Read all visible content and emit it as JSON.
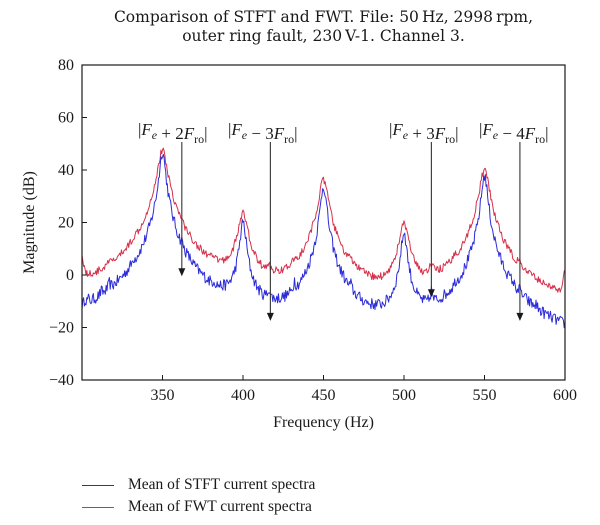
{
  "chart_data": {
    "type": "line",
    "title": "Comparison of STFT and FWT. File: 50 Hz, 2998 rpm, outer ring fault, 230 V-1. Channel 3.",
    "title_lines": [
      "Comparison of STFT and FWT. File: 50 Hz, 2998 rpm,",
      "outer ring fault, 230 V-1. Channel 3."
    ],
    "xlabel": "Frequency (Hz)",
    "ylabel": "Magnitude (dB)",
    "xlim": [
      300,
      600
    ],
    "ylim": [
      -40,
      80
    ],
    "xticks": [
      350,
      400,
      450,
      500,
      550,
      600
    ],
    "yticks": [
      -40,
      -20,
      0,
      20,
      40,
      60,
      80
    ],
    "grid": false,
    "legend_position": "bottom-left-below-axes",
    "series": [
      {
        "name": "Mean of STFT current spectra",
        "color": "#2b2bd9",
        "baseline_db": -34,
        "noise_db": 2.2,
        "peaks": [
          {
            "freq": 302,
            "db": -22
          },
          {
            "freq": 304,
            "db": -28
          },
          {
            "freq": 312,
            "db": -24
          },
          {
            "freq": 317,
            "db": -16
          },
          {
            "freq": 332,
            "db": -10
          },
          {
            "freq": 350,
            "db": 47
          },
          {
            "freq": 362,
            "db": -5
          },
          {
            "freq": 367,
            "db": -26
          },
          {
            "freq": 382,
            "db": -19
          },
          {
            "freq": 400,
            "db": 20
          },
          {
            "freq": 416,
            "db": -14
          },
          {
            "freq": 432,
            "db": -11
          },
          {
            "freq": 450,
            "db": 34
          },
          {
            "freq": 462,
            "db": -22
          },
          {
            "freq": 467,
            "db": -18
          },
          {
            "freq": 500,
            "db": 16
          },
          {
            "freq": 517,
            "db": -14
          },
          {
            "freq": 532,
            "db": -21
          },
          {
            "freq": 550,
            "db": 38
          },
          {
            "freq": 563,
            "db": -24
          },
          {
            "freq": 567,
            "db": -20
          },
          {
            "freq": 572,
            "db": -22
          },
          {
            "freq": 582,
            "db": -28
          }
        ]
      },
      {
        "name": "Mean of FWT current spectra",
        "color": "#d6304a",
        "baseline_db": -20,
        "noise_db": 1.4,
        "peaks": [
          {
            "freq": 300,
            "db": 4
          },
          {
            "freq": 317,
            "db": -12
          },
          {
            "freq": 332,
            "db": -9
          },
          {
            "freq": 350,
            "db": 47.5
          },
          {
            "freq": 362,
            "db": -2
          },
          {
            "freq": 382,
            "db": -16
          },
          {
            "freq": 400,
            "db": 23
          },
          {
            "freq": 416,
            "db": -10
          },
          {
            "freq": 432,
            "db": -8
          },
          {
            "freq": 450,
            "db": 36
          },
          {
            "freq": 467,
            "db": -15
          },
          {
            "freq": 500,
            "db": 19
          },
          {
            "freq": 517,
            "db": -6
          },
          {
            "freq": 532,
            "db": -11
          },
          {
            "freq": 550,
            "db": 40
          },
          {
            "freq": 572,
            "db": -14
          },
          {
            "freq": 600,
            "db": 0
          }
        ]
      }
    ],
    "annotations": [
      {
        "label_main": "|F",
        "sub1": "e",
        "mid": " + 2F",
        "sub2": "ro",
        "end": "|",
        "arrow_freq": 362,
        "arrow_tip_db": -2
      },
      {
        "label_main": "|F",
        "sub1": "e",
        "mid": " − 3F",
        "sub2": "ro",
        "end": "|",
        "arrow_freq": 417,
        "arrow_tip_db": -19
      },
      {
        "label_main": "|F",
        "sub1": "e",
        "mid": " + 3F",
        "sub2": "ro",
        "end": "|",
        "arrow_freq": 517,
        "arrow_tip_db": -10
      },
      {
        "label_main": "|F",
        "sub1": "e",
        "mid": " − 4F",
        "sub2": "ro",
        "end": "|",
        "arrow_freq": 572,
        "arrow_tip_db": -19
      }
    ]
  }
}
